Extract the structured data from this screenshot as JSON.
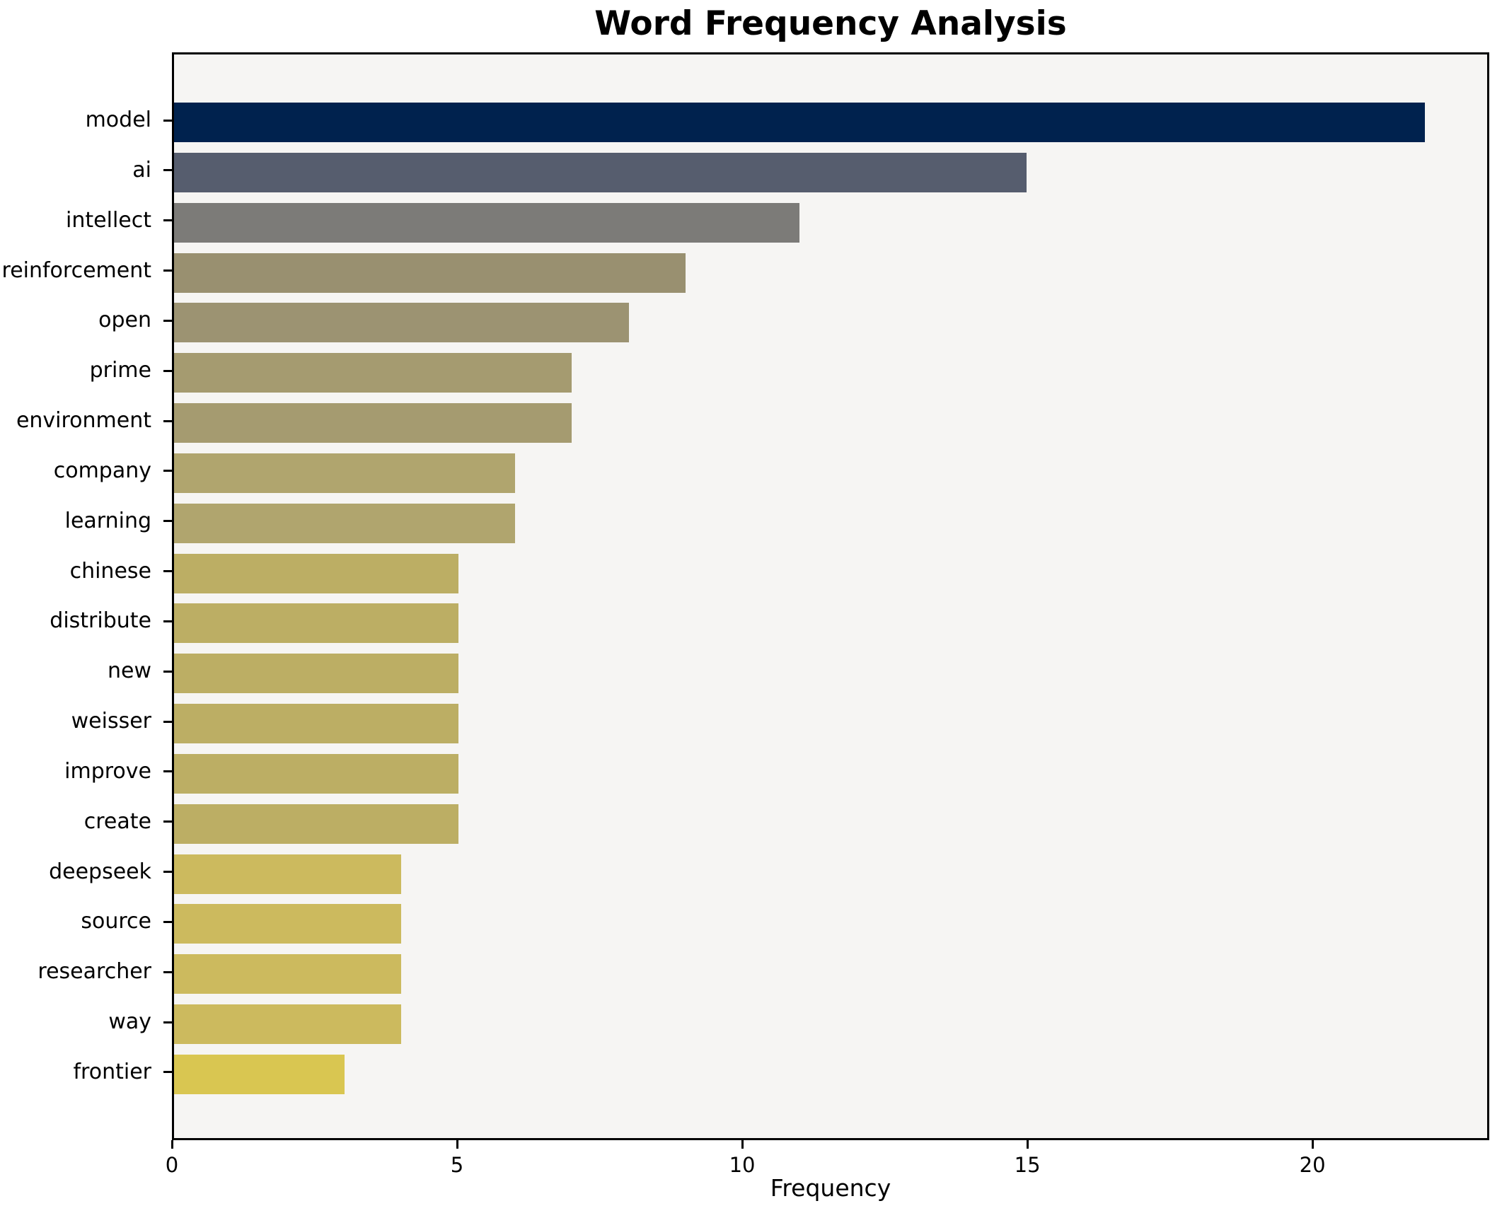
{
  "chart_data": {
    "type": "bar",
    "orientation": "horizontal",
    "title": "Word Frequency Analysis",
    "xlabel": "Frequency",
    "ylabel": "",
    "xlim": [
      0,
      23.1
    ],
    "x_tick_values": [
      0,
      5,
      10,
      15,
      20
    ],
    "x_tick_labels": [
      "0",
      "5",
      "10",
      "15",
      "20"
    ],
    "grid": false,
    "legend": "none",
    "plot_background": "#f6f5f3",
    "figure_background": "#ffffff",
    "spine_color": "#000000",
    "colormap_note": "cividis gradient, darkest = highest frequency",
    "categories": [
      "model",
      "ai",
      "intellect",
      "reinforcement",
      "open",
      "prime",
      "environment",
      "company",
      "learning",
      "chinese",
      "distribute",
      "new",
      "weisser",
      "improve",
      "create",
      "deepseek",
      "source",
      "researcher",
      "way",
      "frontier"
    ],
    "values": [
      22,
      15,
      11,
      9,
      8,
      7,
      7,
      6,
      6,
      5,
      5,
      5,
      5,
      5,
      5,
      4,
      4,
      4,
      4,
      3
    ],
    "bar_colors": [
      "#00224e",
      "#565d6e",
      "#7c7b78",
      "#999070",
      "#9c9372",
      "#a59b70",
      "#a59b70",
      "#b0a56e",
      "#b0a56e",
      "#bcae64",
      "#bcae64",
      "#bcae64",
      "#bcae64",
      "#bcae64",
      "#bcae64",
      "#ccba5e",
      "#ccba5e",
      "#ccba5e",
      "#ccba5e",
      "#d9c651"
    ]
  }
}
